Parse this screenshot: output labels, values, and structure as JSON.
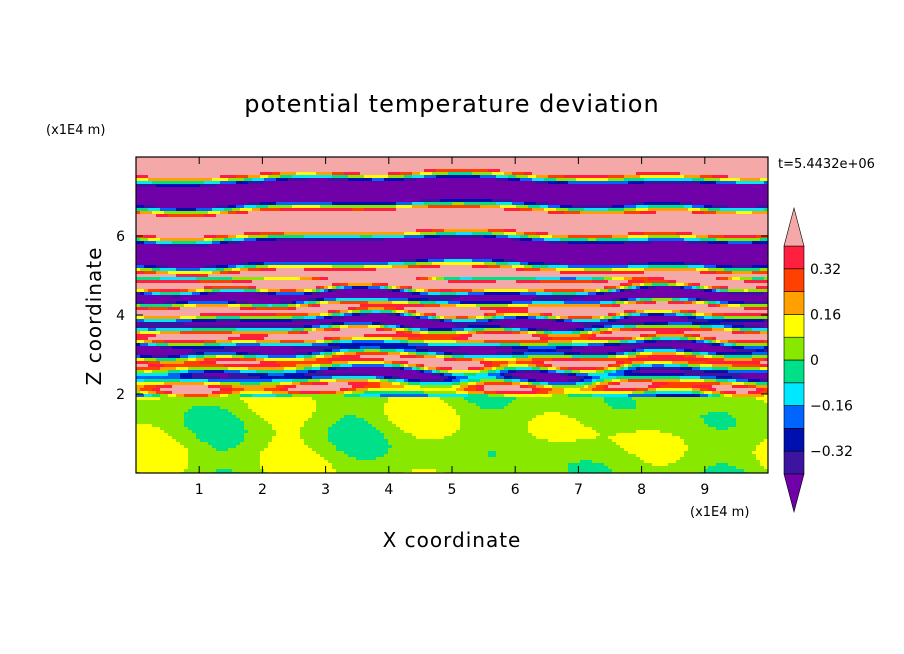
{
  "chart_data": {
    "type": "heatmap",
    "title": "potential temperature deviation",
    "xlabel": "X coordinate",
    "ylabel": "Z coordinate",
    "x_units": "(x1E4 m)",
    "y_units": "(x1E4 m)",
    "time_label": "t=5.4432e+06",
    "xlim": [
      0,
      10
    ],
    "ylim": [
      0,
      8
    ],
    "x_ticks": [
      1,
      2,
      3,
      4,
      5,
      6,
      7,
      8,
      9
    ],
    "x_tick_labels": [
      "1",
      "2",
      "3",
      "4",
      "5",
      "6",
      "7",
      "8",
      "9"
    ],
    "y_ticks": [
      2,
      4,
      6
    ],
    "y_tick_labels": [
      "2",
      "4",
      "6"
    ],
    "colorbar": {
      "levels": [
        -0.4,
        -0.32,
        -0.24,
        -0.16,
        -0.08,
        0,
        0.08,
        0.16,
        0.24,
        0.32,
        0.4
      ],
      "labels": [
        {
          "value": -0.32,
          "text": "-0.32"
        },
        {
          "value": -0.16,
          "text": "-0.16"
        },
        {
          "value": 0,
          "text": "0"
        },
        {
          "value": 0.16,
          "text": "0.16"
        },
        {
          "value": 0.32,
          "text": "0.32"
        }
      ],
      "colors": [
        "#7000a8",
        "#3c14a0",
        "#0010b0",
        "#0064ff",
        "#00e8ff",
        "#00e088",
        "#88e800",
        "#ffff00",
        "#ffa000",
        "#ff4000",
        "#ff2040",
        "#f4a8a8"
      ],
      "extend": "both"
    },
    "zones": [
      {
        "zmin": 0,
        "zmax": 2,
        "pattern": "mostly 0 to 0.08 (green), with -0.08 to 0 patches"
      },
      {
        "zmin": 2,
        "zmax": 5,
        "pattern": "turbulent mixed layer, full range of values"
      },
      {
        "zmin": 5,
        "zmax": 8,
        "pattern": "alternating bands below -0.4 and above 0.4"
      }
    ]
  }
}
